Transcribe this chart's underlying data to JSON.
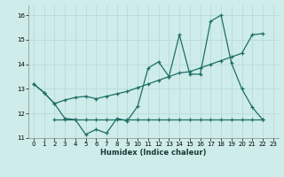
{
  "xlabel": "Humidex (Indice chaleur)",
  "background_color": "#ceecea",
  "grid_color": "#b2d8d4",
  "line_color": "#1e6e64",
  "ylim": [
    11,
    16.4
  ],
  "xlim": [
    -0.5,
    23.5
  ],
  "yticks": [
    11,
    12,
    13,
    14,
    15,
    16
  ],
  "xticks": [
    0,
    1,
    2,
    3,
    4,
    5,
    6,
    7,
    8,
    9,
    10,
    11,
    12,
    13,
    14,
    15,
    16,
    17,
    18,
    19,
    20,
    21,
    22,
    23
  ],
  "line1_x": [
    0,
    1,
    2,
    3,
    4,
    5,
    6,
    7,
    8,
    9,
    10,
    11,
    12,
    13,
    14,
    15,
    16,
    17,
    18,
    19,
    20,
    21,
    22
  ],
  "line1_y": [
    13.2,
    12.85,
    12.4,
    11.8,
    11.75,
    11.15,
    11.35,
    11.2,
    11.8,
    11.7,
    12.3,
    13.85,
    14.1,
    13.5,
    15.2,
    13.6,
    13.6,
    15.75,
    16.0,
    14.05,
    13.0,
    12.25,
    11.75
  ],
  "line2_x": [
    0,
    1,
    2,
    3,
    4,
    5,
    6,
    7,
    8,
    9,
    10,
    11,
    12,
    13,
    14,
    15,
    16,
    17,
    18,
    19,
    20,
    21,
    22
  ],
  "line2_y": [
    13.2,
    12.85,
    12.4,
    12.55,
    12.65,
    12.7,
    12.6,
    12.7,
    12.8,
    12.9,
    13.05,
    13.2,
    13.35,
    13.5,
    13.65,
    13.7,
    13.85,
    14.0,
    14.15,
    14.3,
    14.45,
    15.2,
    15.25
  ],
  "line3_x": [
    2,
    3,
    4,
    5,
    6,
    7,
    8,
    9,
    10,
    11,
    12,
    13,
    14,
    15,
    16,
    17,
    18,
    19,
    20,
    21,
    22
  ],
  "line3_y": [
    11.75,
    11.75,
    11.75,
    11.75,
    11.75,
    11.75,
    11.75,
    11.75,
    11.75,
    11.75,
    11.75,
    11.75,
    11.75,
    11.75,
    11.75,
    11.75,
    11.75,
    11.75,
    11.75,
    11.75,
    11.75
  ]
}
